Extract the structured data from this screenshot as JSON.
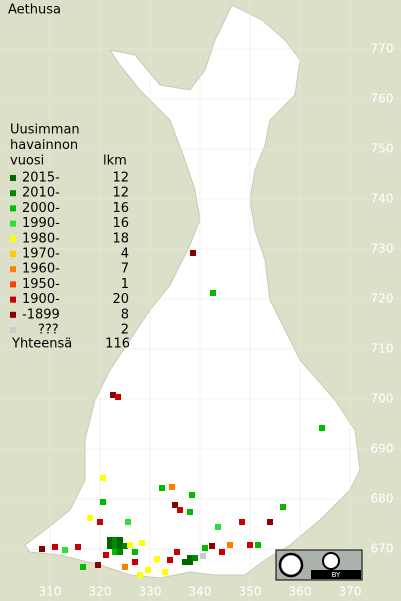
{
  "title": "Aethusa",
  "legend": {
    "header": [
      "Uusimman",
      "havainnon",
      "vuosi"
    ],
    "count_label": "lkm",
    "items": [
      {
        "label": "2015-",
        "count": 12,
        "color": "#006600"
      },
      {
        "label": "2010-",
        "count": 12,
        "color": "#008800"
      },
      {
        "label": "2000-",
        "count": 16,
        "color": "#00bb00"
      },
      {
        "label": "1990-",
        "count": 16,
        "color": "#33dd33"
      },
      {
        "label": "1980-",
        "count": 18,
        "color": "#ffff00"
      },
      {
        "label": "1970-",
        "count": 4,
        "color": "#ffcc00"
      },
      {
        "label": "1960-",
        "count": 7,
        "color": "#ff8000"
      },
      {
        "label": "1950-",
        "count": 1,
        "color": "#ff4000"
      },
      {
        "label": "1900-",
        "count": 20,
        "color": "#cc0000"
      },
      {
        "label": "-1899",
        "count": 8,
        "color": "#880000"
      },
      {
        "label": "???",
        "count": 2,
        "color": "#cccccc"
      }
    ],
    "total_label": "Yhteensä",
    "total": 116
  },
  "xlim": [
    300,
    380.2
  ],
  "ylim": [
    659.6,
    779.8
  ],
  "xticks": [
    310,
    320,
    330,
    340,
    350,
    360,
    370
  ],
  "yticks": [
    670,
    680,
    690,
    700,
    710,
    720,
    730,
    740,
    750,
    760,
    770
  ],
  "badge": "BY",
  "points": [
    {
      "x": 338.6,
      "y": 729.2,
      "class": 9
    },
    {
      "x": 342.6,
      "y": 721.2,
      "class": 2
    },
    {
      "x": 322.6,
      "y": 700.8,
      "class": 9
    },
    {
      "x": 323.6,
      "y": 700.4,
      "class": 8
    },
    {
      "x": 364.4,
      "y": 694.2,
      "class": 2
    },
    {
      "x": 320.6,
      "y": 684.2,
      "class": 4
    },
    {
      "x": 332.4,
      "y": 682.2,
      "class": 2
    },
    {
      "x": 334.4,
      "y": 682.4,
      "class": 6
    },
    {
      "x": 338.4,
      "y": 680.8,
      "class": 2
    },
    {
      "x": 335,
      "y": 678.8,
      "class": 9
    },
    {
      "x": 336,
      "y": 677.8,
      "class": 8
    },
    {
      "x": 338,
      "y": 677.4,
      "class": 2
    },
    {
      "x": 320.6,
      "y": 679.4,
      "class": 2
    },
    {
      "x": 318,
      "y": 676.2,
      "class": 4
    },
    {
      "x": 320,
      "y": 675.4,
      "class": 8
    },
    {
      "x": 325.6,
      "y": 675.4,
      "class": 3
    },
    {
      "x": 343.6,
      "y": 674.4,
      "class": 3
    },
    {
      "x": 348.4,
      "y": 675.4,
      "class": 8
    },
    {
      "x": 356.6,
      "y": 678.4,
      "class": 2
    },
    {
      "x": 354,
      "y": 675.4,
      "class": 9
    },
    {
      "x": 322,
      "y": 671.8,
      "class": 0
    },
    {
      "x": 323,
      "y": 671.8,
      "class": 1
    },
    {
      "x": 324,
      "y": 671.8,
      "class": 0
    },
    {
      "x": 322,
      "y": 670.6,
      "class": 0
    },
    {
      "x": 323,
      "y": 670.6,
      "class": 1
    },
    {
      "x": 324,
      "y": 670.6,
      "class": 0
    },
    {
      "x": 325,
      "y": 670.6,
      "class": 1
    },
    {
      "x": 323,
      "y": 669.4,
      "class": 2
    },
    {
      "x": 324,
      "y": 669.4,
      "class": 1
    },
    {
      "x": 326,
      "y": 670.8,
      "class": 4
    },
    {
      "x": 328.4,
      "y": 671.2,
      "class": 4
    },
    {
      "x": 321.2,
      "y": 668.8,
      "class": 8
    },
    {
      "x": 327,
      "y": 669.4,
      "class": 2
    },
    {
      "x": 311,
      "y": 670.4,
      "class": 8
    },
    {
      "x": 308.4,
      "y": 670,
      "class": 9
    },
    {
      "x": 315.6,
      "y": 670.4,
      "class": 8
    },
    {
      "x": 313,
      "y": 669.8,
      "class": 3
    },
    {
      "x": 338,
      "y": 668.2,
      "class": 0
    },
    {
      "x": 339,
      "y": 668.2,
      "class": 1
    },
    {
      "x": 337,
      "y": 667.4,
      "class": 0
    },
    {
      "x": 338,
      "y": 667.4,
      "class": 0
    },
    {
      "x": 341,
      "y": 670.2,
      "class": 2
    },
    {
      "x": 342.4,
      "y": 670.6,
      "class": 9
    },
    {
      "x": 346,
      "y": 670.8,
      "class": 6
    },
    {
      "x": 344.4,
      "y": 669.4,
      "class": 8
    },
    {
      "x": 350,
      "y": 670.8,
      "class": 8
    },
    {
      "x": 351.6,
      "y": 670.8,
      "class": 2
    },
    {
      "x": 331.4,
      "y": 668,
      "class": 4
    },
    {
      "x": 329.6,
      "y": 665.8,
      "class": 4
    },
    {
      "x": 328,
      "y": 664.8,
      "class": 4
    },
    {
      "x": 333,
      "y": 665.4,
      "class": 4
    },
    {
      "x": 325,
      "y": 666.4,
      "class": 6
    },
    {
      "x": 319.6,
      "y": 666.8,
      "class": 9
    },
    {
      "x": 316.6,
      "y": 666.4,
      "class": 2
    },
    {
      "x": 327,
      "y": 667.4,
      "class": 8
    },
    {
      "x": 334,
      "y": 667.8,
      "class": 8
    },
    {
      "x": 335.4,
      "y": 669.4,
      "class": 8
    },
    {
      "x": 340.6,
      "y": 668.6,
      "class": 10
    }
  ]
}
